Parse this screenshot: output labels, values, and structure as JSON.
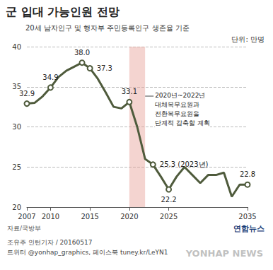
{
  "chart_data": {
    "type": "line",
    "title": "군 입대 가능인원 전망",
    "subtitle": "20세 남자인구 및 행자부 주민등록인구 생존율 기준",
    "unit": "단위: 만명",
    "source": "자료/국방부",
    "credits": [
      "조유주 인턴기자 / 20160517",
      "트위터 @yonhap_graphics, 페이스북 tuney.kr/LeYN1"
    ],
    "logo": "연합뉴스",
    "watermark": "YONHAP NEWS",
    "x": [
      2007,
      2008,
      2009,
      2010,
      2011,
      2012,
      2013,
      2014,
      2015,
      2016,
      2017,
      2018,
      2019,
      2020,
      2021,
      2022,
      2023,
      2024,
      2025,
      2026,
      2027,
      2028,
      2029,
      2030,
      2031,
      2032,
      2033,
      2034,
      2035
    ],
    "values": [
      32.9,
      33.0,
      33.8,
      34.9,
      36.2,
      37.0,
      37.5,
      38.0,
      37.3,
      36.0,
      34.3,
      32.5,
      32.3,
      33.1,
      30.0,
      26.0,
      25.3,
      23.8,
      22.2,
      23.8,
      25.0,
      24.0,
      23.0,
      24.0,
      24.0,
      24.3,
      21.3,
      22.8,
      22.8
    ],
    "value_labels": [
      "32.9",
      null,
      null,
      "34.9",
      null,
      null,
      null,
      "38.0",
      "37.3",
      null,
      null,
      null,
      null,
      "33.1",
      null,
      null,
      "25.3 (2023년)",
      null,
      "22.2",
      null,
      null,
      null,
      null,
      null,
      null,
      null,
      null,
      null,
      "22.8"
    ],
    "color": "#4f5b3c",
    "xlim": [
      2007,
      2035
    ],
    "xticks": [
      2007,
      2010,
      2015,
      2020,
      2025,
      2035
    ],
    "ylim": [
      20,
      40
    ],
    "yticks": [
      20,
      25,
      30,
      35,
      40
    ],
    "grid": true,
    "marker": "circle",
    "annotations": [
      {
        "text": [
          "2020년~2022년",
          "대체복무요원과",
          "전환복무요원을",
          "단계적 감축할 계획"
        ],
        "x": [
          2020,
          2022
        ]
      }
    ]
  }
}
